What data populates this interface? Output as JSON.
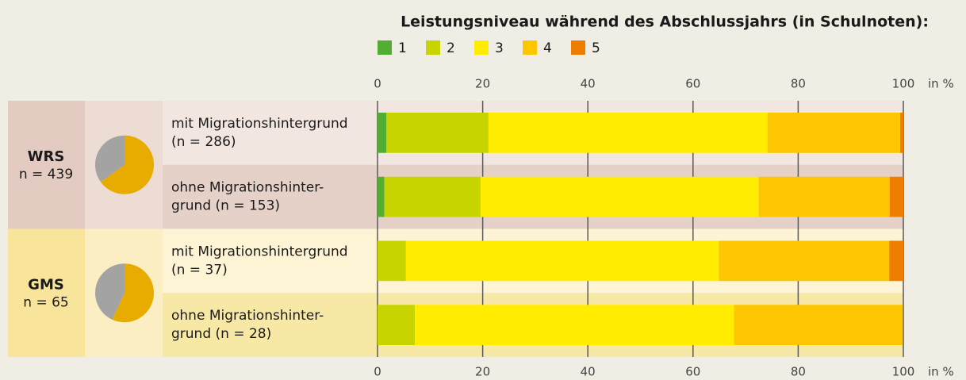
{
  "chart_data": {
    "type": "stacked-bar-horizontal",
    "title": "Leistungsniveau während des Abschlussjahrs (in Schulnoten):",
    "x_unit": "in %",
    "xlim": [
      0,
      100
    ],
    "xticks": [
      0,
      20,
      40,
      60,
      80,
      100
    ],
    "grid": true,
    "categories": [
      [
        "mit Migrationshintergrund",
        "(n = 286)"
      ],
      [
        "ohne Migrationshinter-",
        "grund (n = 153)"
      ],
      [
        "mit Migrationshintergrund",
        "(n = 37)"
      ],
      [
        "ohne Migrationshinter-",
        "grund (n = 28)"
      ]
    ],
    "series": [
      {
        "name": "1",
        "color": "#52ae32",
        "values": [
          1.7,
          1.3,
          0,
          0
        ]
      },
      {
        "name": "2",
        "color": "#c8d400",
        "values": [
          19.4,
          18.3,
          5.4,
          7.1
        ]
      },
      {
        "name": "3",
        "color": "#ffec00",
        "values": [
          53.1,
          52.9,
          59.5,
          60.7
        ]
      },
      {
        "name": "4",
        "color": "#fdc600",
        "values": [
          25.2,
          24.9,
          32.4,
          32.1
        ]
      },
      {
        "name": "5",
        "color": "#ef7d00",
        "values": [
          0.6,
          2.6,
          2.7,
          0
        ]
      }
    ],
    "groups": [
      {
        "name": "WRS",
        "n": "n = 439",
        "pie": {
          "values": [
            65.1,
            34.9
          ],
          "colors": [
            "#e8ab00",
            "#a3a3a3"
          ]
        }
      },
      {
        "name": "GMS",
        "n": "n = 65",
        "pie": {
          "values": [
            56.9,
            43.1
          ],
          "colors": [
            "#e8ab00",
            "#a3a3a3"
          ]
        }
      }
    ]
  }
}
